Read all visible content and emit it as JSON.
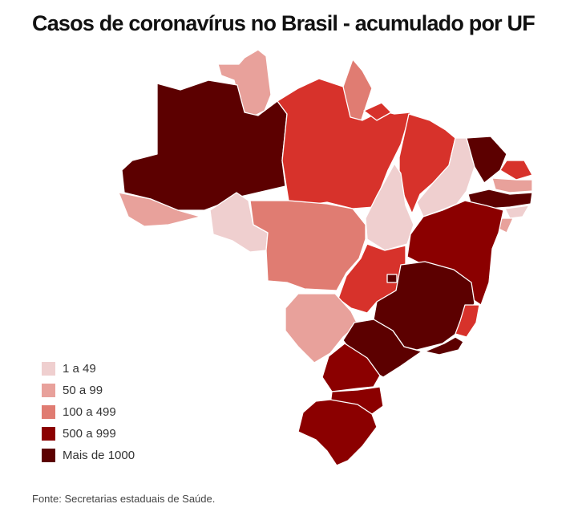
{
  "title": "Casos de coronavírus no Brasil - acumulado por UF",
  "legend": [
    {
      "label": "1 a 49",
      "color": "#efcfcf"
    },
    {
      "label": "50 a 99",
      "color": "#e8a19b"
    },
    {
      "label": "100 a 499",
      "color": "#e07c72"
    },
    {
      "label": "500 a 999",
      "color": "#8b0000"
    },
    {
      "label": "Mais de 1000",
      "color": "#5c0000"
    }
  ],
  "source": "Fonte: Secretarias estaduais de Saúde.",
  "map_colors": {
    "very_light": "#efcfcf",
    "light": "#e8a19b",
    "medium": "#e07c72",
    "red": "#d7322b",
    "dark": "#8b0000",
    "darkest": "#5c0000",
    "border": "#ffffff"
  }
}
